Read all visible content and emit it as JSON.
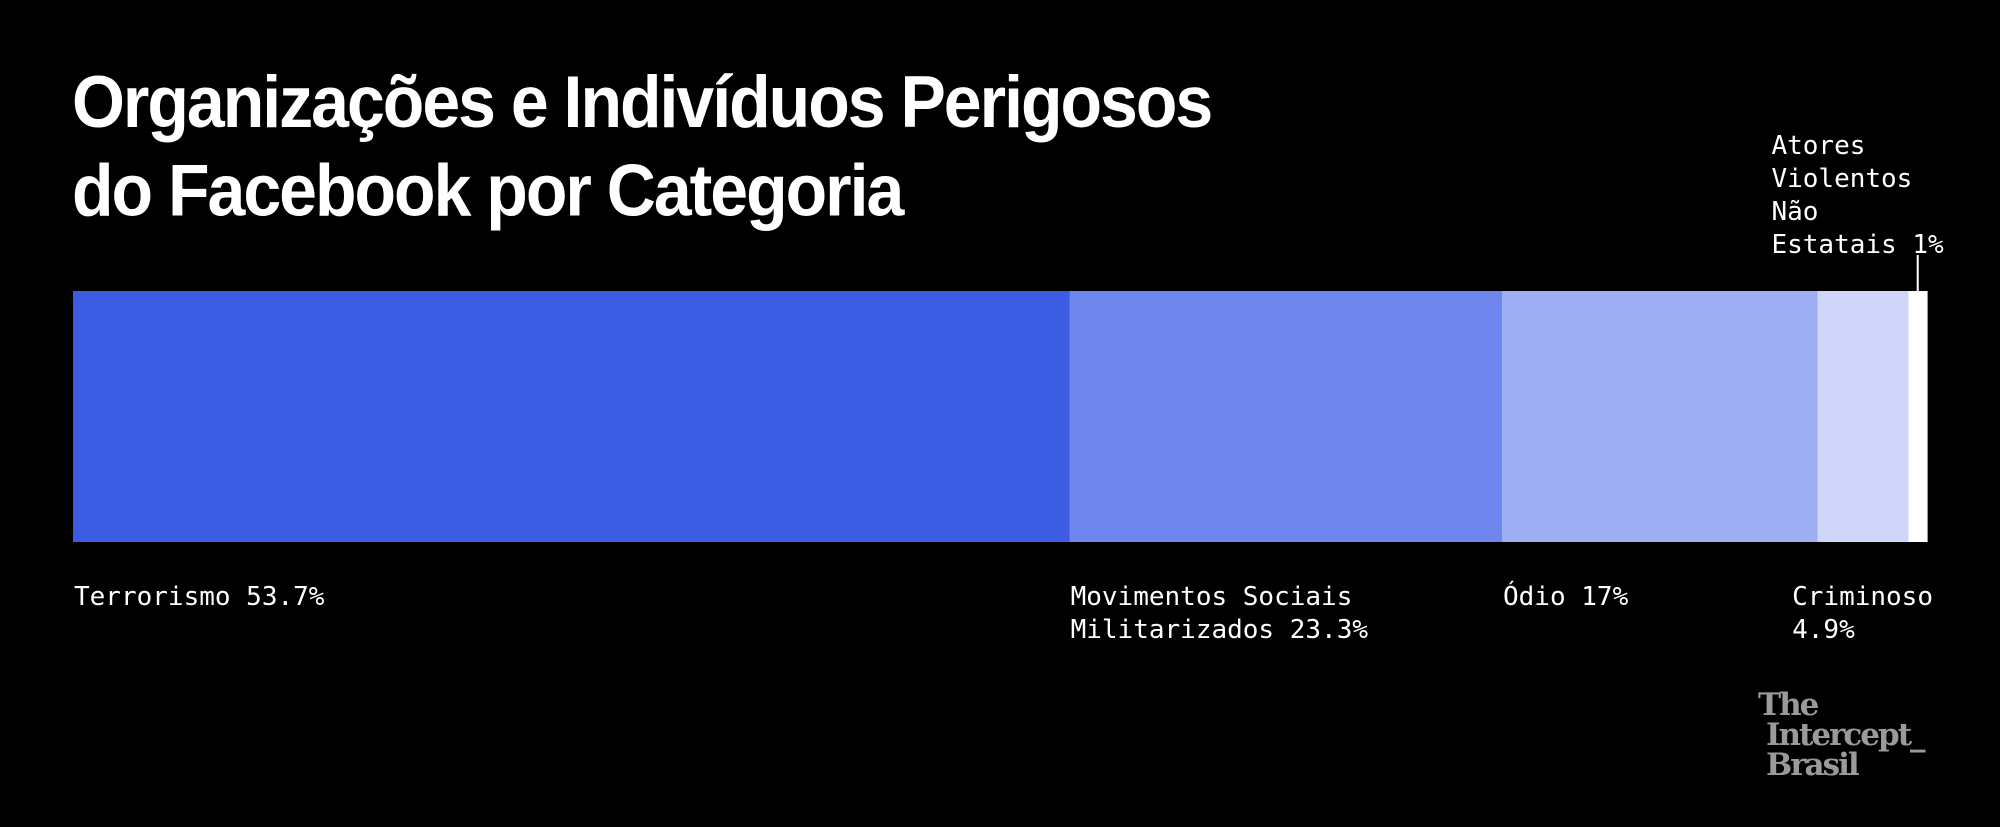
{
  "chart_data": {
    "type": "bar",
    "orientation": "horizontal-stacked",
    "title_lines": [
      "Organizações e Indivíduos Perigosos",
      "do Facebook por Categoria"
    ],
    "xlabel": "",
    "ylabel": "",
    "grid": false,
    "legend": "none",
    "unit": "%",
    "categories": [
      "Terrorismo",
      "Movimentos Sociais Militarizados",
      "Ódio",
      "Criminoso",
      "Atores Violentos Não Estatais"
    ],
    "values": [
      53.7,
      23.3,
      17,
      4.9,
      1
    ],
    "colors": [
      "#3c5ce4",
      "#6e86ee",
      "#9daef2",
      "#d0d6fa",
      "#ffffff"
    ],
    "labels": [
      {
        "lines": [
          "Terrorismo 53.7%"
        ],
        "position": "below"
      },
      {
        "lines": [
          "Movimentos Sociais",
          "Militarizados 23.3%"
        ],
        "position": "below"
      },
      {
        "lines": [
          "Ódio 17%"
        ],
        "position": "below"
      },
      {
        "lines": [
          "Criminoso",
          "4.9%"
        ],
        "position": "below"
      },
      {
        "lines": [
          "Atores",
          "Violentos",
          "Não",
          "Estatais 1%"
        ],
        "position": "above"
      }
    ]
  },
  "logo": {
    "lines": [
      "The",
      "Intercept_",
      "Brasil"
    ]
  }
}
